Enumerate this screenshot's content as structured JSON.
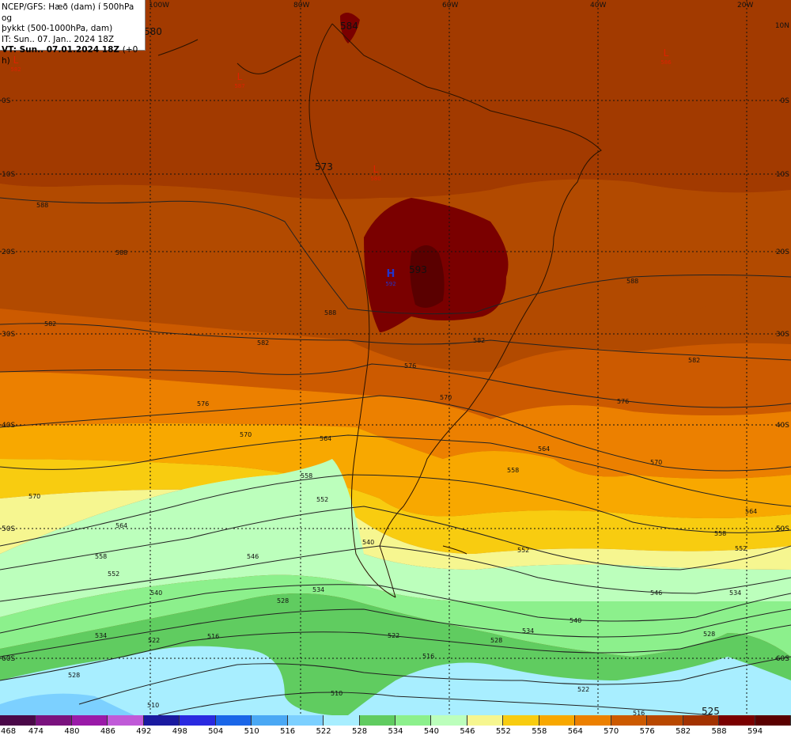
{
  "header": {
    "line1": "NCEP/GFS: Hæð (dam) í 500hPa og",
    "line2": "þykkt (500-1000hPa, dam)",
    "line3": "IT: Sun.. 07. Jan.. 2024 18Z",
    "line4_label": "VT: Sun.. 07.01.2024 18Z",
    "line4_offset": "(+0 h)"
  },
  "map": {
    "lon_labels": [
      "100W",
      "80W",
      "60W",
      "40W",
      "20W"
    ],
    "lat_labels": [
      "0S",
      "10S",
      "20S",
      "30S",
      "40S",
      "50S",
      "60S"
    ],
    "lat_labels_right": [
      "10N",
      "0S",
      "10S",
      "20S",
      "30S",
      "40S",
      "50S",
      "60S"
    ],
    "pressure_centers": [
      {
        "type": "L",
        "value": "582",
        "color": "#dd2200"
      },
      {
        "type": "L",
        "value": "587",
        "color": "#dd2200"
      },
      {
        "type": "L",
        "value": "580",
        "color": "#dd2200"
      },
      {
        "type": "L",
        "value": "586",
        "color": "#dd2200"
      },
      {
        "type": "H",
        "value": "592",
        "color": "#2233cc"
      }
    ],
    "height_labels": [
      "584",
      "573",
      "593",
      "525",
      "580"
    ],
    "thickness_labels": [
      "588",
      "582",
      "576",
      "570",
      "564",
      "558",
      "552",
      "546",
      "540",
      "534",
      "528",
      "522",
      "516",
      "510"
    ]
  },
  "legend": {
    "values": [
      468,
      474,
      480,
      486,
      492,
      498,
      504,
      510,
      516,
      522,
      528,
      534,
      540,
      546,
      552,
      558,
      564,
      570,
      576,
      582,
      588,
      594
    ],
    "colors": [
      "#4a0848",
      "#7a127e",
      "#9a1aa8",
      "#c05ad8",
      "#1a1aa0",
      "#2a2ae0",
      "#1a66e8",
      "#4aa8f4",
      "#7cd0ff",
      "#a8eeff",
      "#60cc60",
      "#8cf08c",
      "#bcffbc",
      "#f6f690",
      "#f8cc10",
      "#f8a800",
      "#ec8000",
      "#cc5a00",
      "#b84800",
      "#a23200",
      "#7a0000",
      "#5a0000"
    ]
  }
}
